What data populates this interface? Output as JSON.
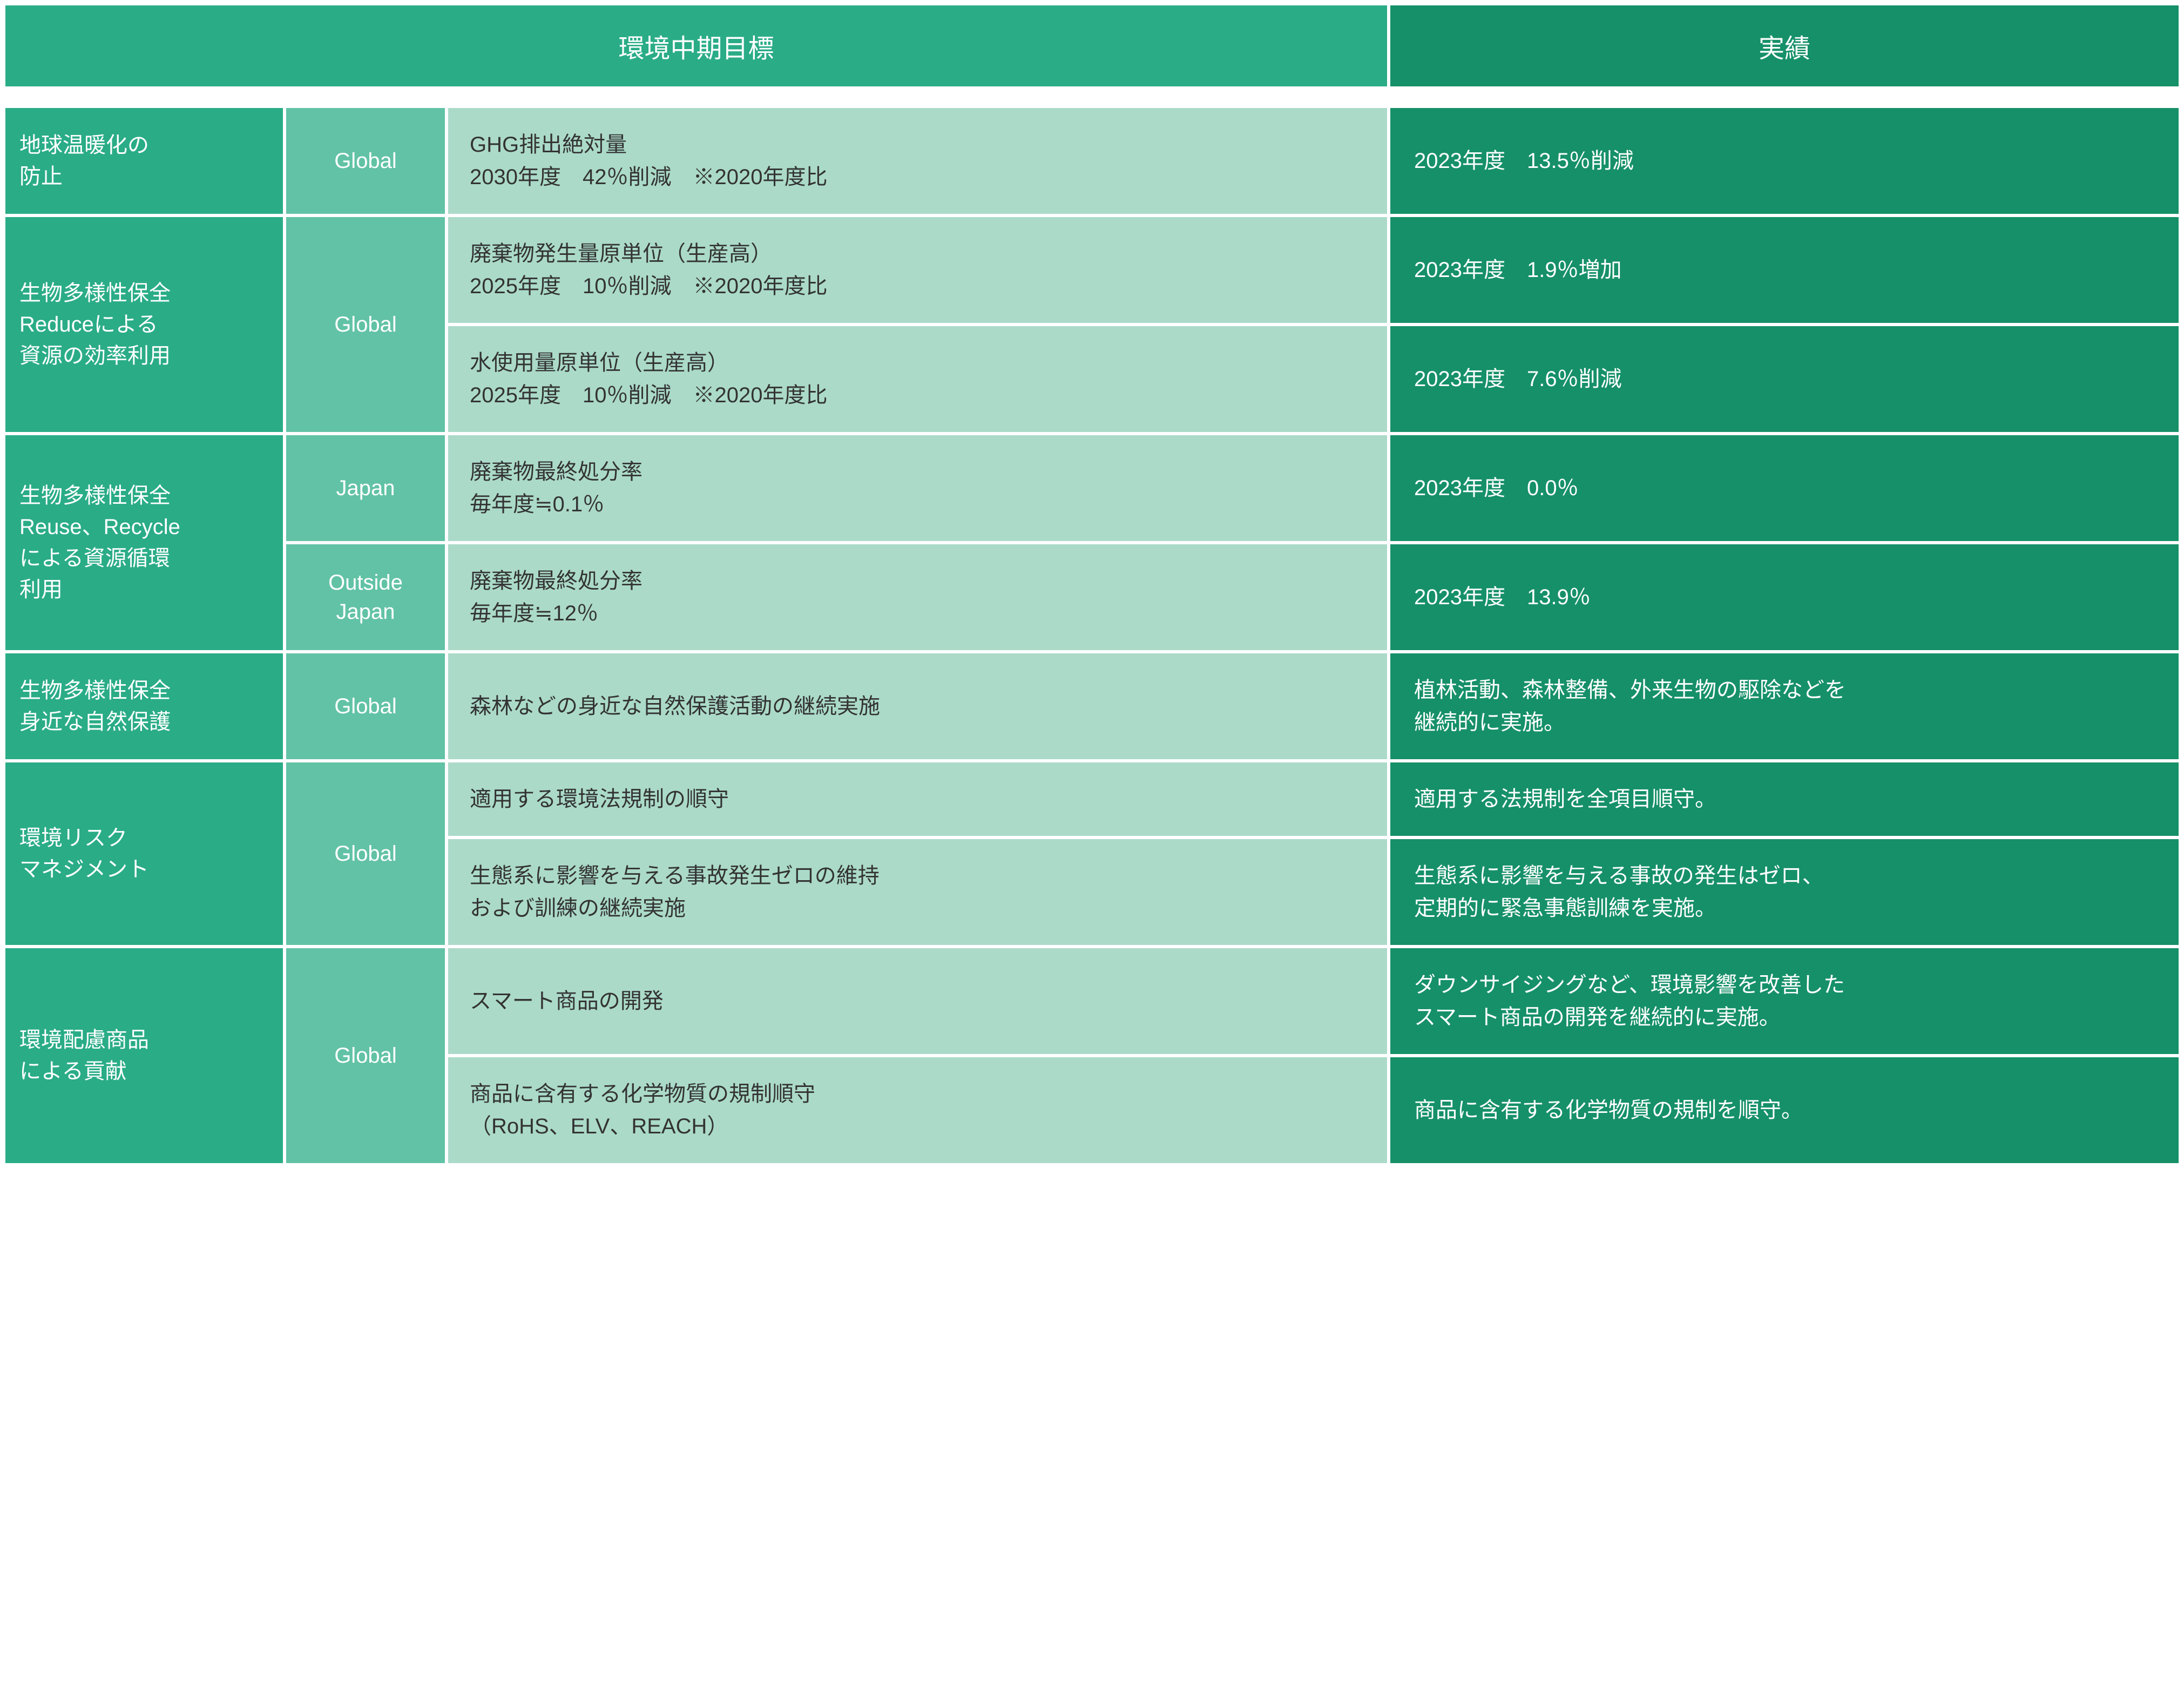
{
  "header": {
    "left": "環境中期目標",
    "right": "実績"
  },
  "groups": [
    {
      "category": "地球温暖化の<br>防止",
      "scopes": [
        {
          "scope": "Global",
          "rows": [
            {
              "target": "GHG排出絶対量<br>2030年度　42％削減　※2020年度比",
              "result": "2023年度　13.5％削減"
            }
          ]
        }
      ]
    },
    {
      "category": "生物多様性保全<br>Reduceによる<br>資源の効率利用",
      "scopes": [
        {
          "scope": "Global",
          "rows": [
            {
              "target": "廃棄物発生量原単位（生産高）<br>2025年度　10％削減　※2020年度比",
              "result": "2023年度　1.9％増加"
            },
            {
              "target": "水使用量原単位（生産高）<br>2025年度　10％削減　※2020年度比",
              "result": "2023年度　7.6％削減"
            }
          ]
        }
      ]
    },
    {
      "category": "生物多様性保全<br>Reuse、Recycle<br>による資源循環<br>利用",
      "scopes": [
        {
          "scope": "Japan",
          "rows": [
            {
              "target": "廃棄物最終処分率<br>毎年度≒0.1％",
              "result": "2023年度　0.0％"
            }
          ]
        },
        {
          "scope": "Outside<br>Japan",
          "rows": [
            {
              "target": "廃棄物最終処分率<br>毎年度≒12％",
              "result": "2023年度　13.9％"
            }
          ]
        }
      ]
    },
    {
      "category": "生物多様性保全<br>身近な自然保護",
      "scopes": [
        {
          "scope": "Global",
          "rows": [
            {
              "target": "森林などの身近な自然保護活動の継続実施",
              "result": "植林活動、森林整備、外来生物の駆除などを<br>継続的に実施。"
            }
          ]
        }
      ]
    },
    {
      "category": "環境リスク<br>マネジメント",
      "scopes": [
        {
          "scope": "Global",
          "rows": [
            {
              "target": "適用する環境法規制の順守",
              "result": "適用する法規制を全項目順守。"
            },
            {
              "target": "生態系に影響を与える事故発生ゼロの維持<br>および訓練の継続実施",
              "result": "生態系に影響を与える事故の発生はゼロ、<br>定期的に緊急事態訓練を実施。"
            }
          ]
        }
      ]
    },
    {
      "category": "環境配慮商品<br>による貢献",
      "scopes": [
        {
          "scope": "Global",
          "rows": [
            {
              "target": "スマート商品の開発",
              "result": "ダウンサイジングなど、環境影響を改善した<br>スマート商品の開発を継続的に実施。"
            },
            {
              "target": "商品に含有する化学物質の規制順守<br>（RoHS、ELV、REACH）",
              "result": "商品に含有する化学物質の規制を順守。"
            }
          ]
        }
      ]
    }
  ]
}
